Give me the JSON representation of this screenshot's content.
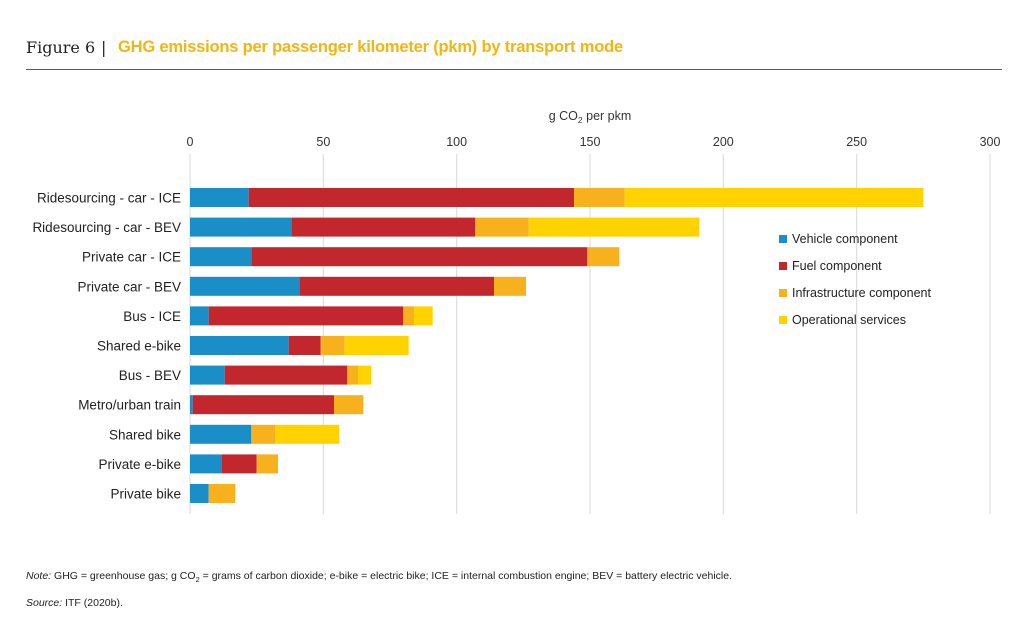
{
  "figure": {
    "label": "Figure 6",
    "separator": "|",
    "title": "GHG emissions per passenger kilometer (pkm) by transport mode"
  },
  "chart_data": {
    "type": "bar",
    "orientation": "horizontal",
    "stacked": true,
    "xlabel_main": "g CO",
    "xlabel_sub": "2",
    "xlabel_rest": " per pkm",
    "xlim": [
      0,
      300
    ],
    "xticks": [
      0,
      50,
      100,
      150,
      200,
      250,
      300
    ],
    "grid": "vertical",
    "legend_position": "right",
    "categories": [
      "Ridesourcing - car - ICE",
      "Ridesourcing - car - BEV",
      "Private car - ICE",
      "Private car - BEV",
      "Bus - ICE",
      "Shared e-bike",
      "Bus - BEV",
      "Metro/urban train",
      "Shared bike",
      "Private e-bike",
      "Private bike"
    ],
    "series": [
      {
        "name": "Vehicle component",
        "color": "#1a8fc7",
        "values": [
          22,
          38,
          23,
          41,
          7,
          37,
          13,
          1,
          23,
          12,
          7
        ]
      },
      {
        "name": "Fuel component",
        "color": "#c1272d",
        "values": [
          122,
          69,
          126,
          73,
          73,
          12,
          46,
          53,
          0,
          13,
          0
        ]
      },
      {
        "name": "Infrastructure component",
        "color": "#f6b11c",
        "values": [
          19,
          20,
          12,
          12,
          4,
          9,
          4,
          11,
          9,
          8,
          10
        ]
      },
      {
        "name": "Operational services",
        "color": "#ffd200",
        "values": [
          112,
          64,
          0,
          0,
          7,
          24,
          5,
          0,
          24,
          0,
          0
        ]
      }
    ]
  },
  "notes": {
    "note_label": "Note:",
    "note_part1": " GHG = greenhouse gas; g CO",
    "note_sub": "2",
    "note_part2": " = grams of carbon dioxide; e-bike = electric bike; ICE = internal combustion engine; BEV = battery electric vehicle.",
    "source_label": "Source:",
    "source_text": " ITF (2020b)."
  }
}
